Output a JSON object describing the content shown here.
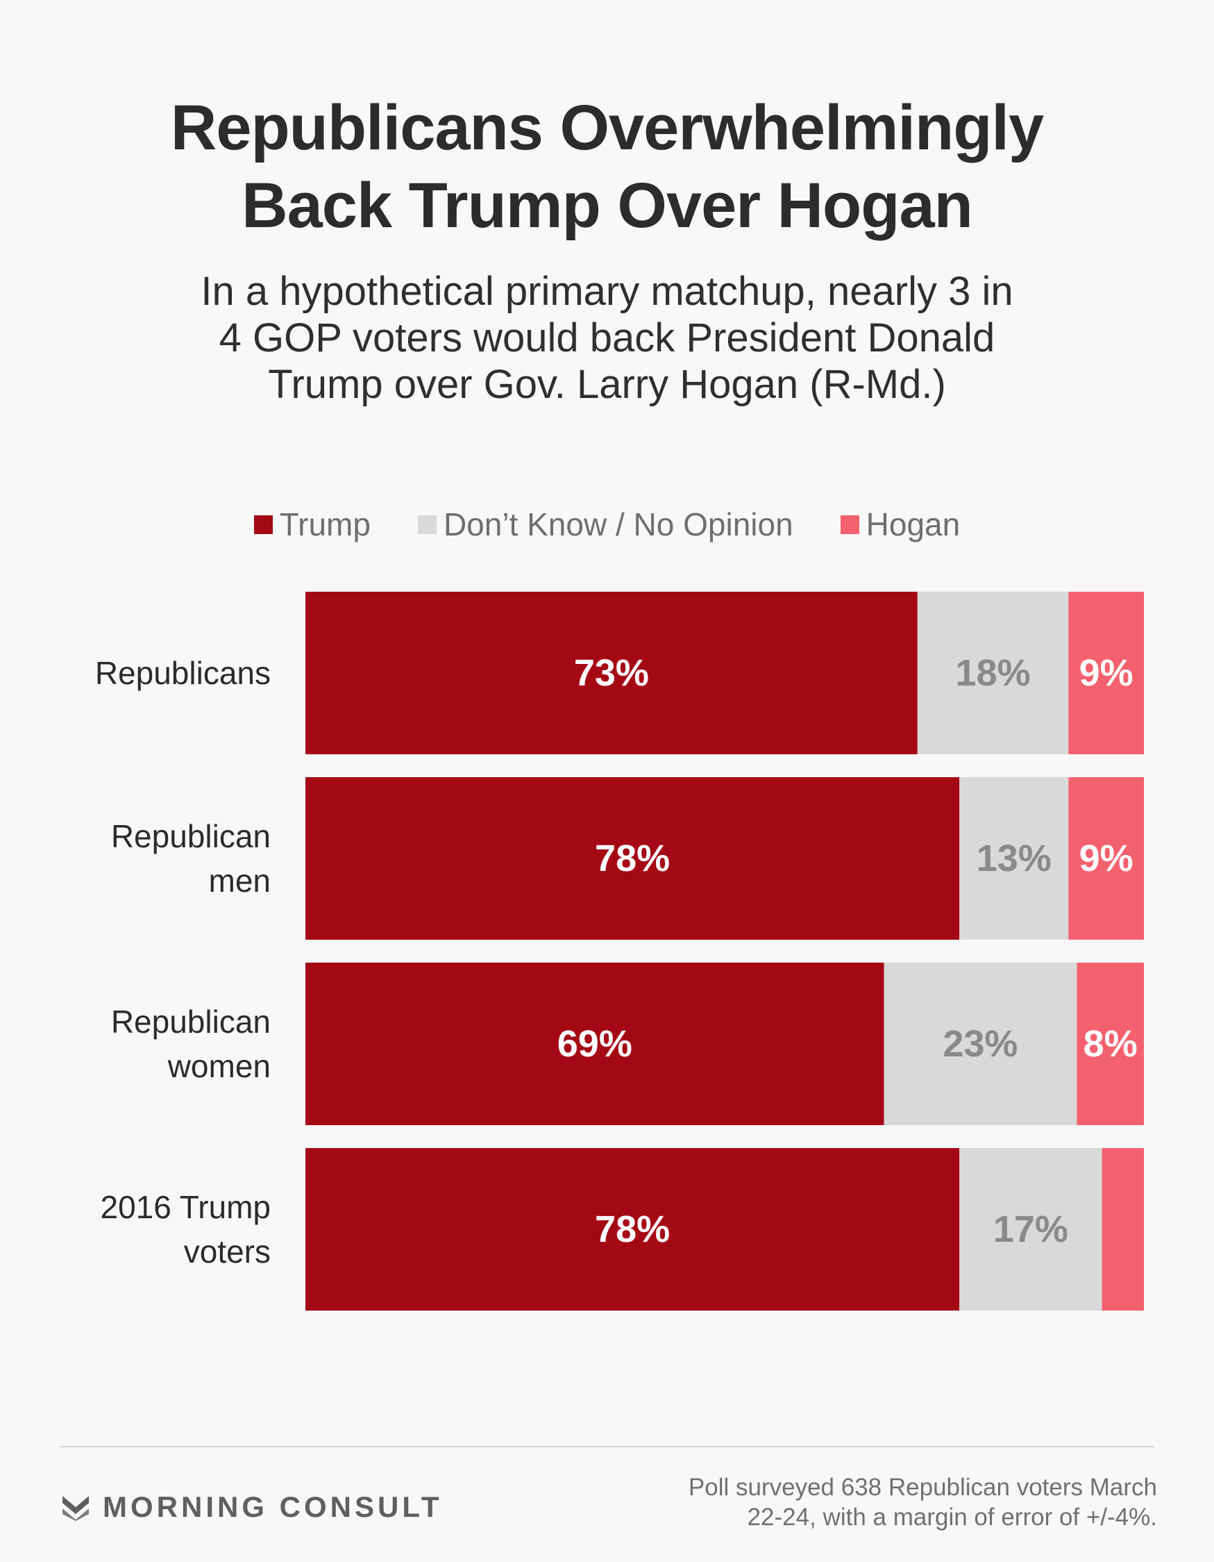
{
  "title_lines": [
    "Republicans Overwhelmingly",
    "Back Trump Over Hogan"
  ],
  "subtitle_lines": [
    "In a hypothetical primary matchup, nearly 3 in",
    "4 GOP voters would back President Donald",
    "Trump over Gov. Larry Hogan (R-Md.)"
  ],
  "legend": [
    {
      "label": "Trump",
      "color": "#a50815"
    },
    {
      "label": "Don’t Know / No Opinion",
      "color": "#d9d9d9"
    },
    {
      "label": "Hogan",
      "color": "#f4616e"
    }
  ],
  "chart_data": {
    "type": "bar",
    "orientation": "horizontal",
    "stacked": true,
    "categories": [
      [
        "Republicans"
      ],
      [
        "Republican",
        "men"
      ],
      [
        "Republican",
        "women"
      ],
      [
        "2016 Trump",
        "voters"
      ]
    ],
    "series": [
      {
        "name": "Trump",
        "color": "#a50815",
        "label_color": "#ffffff",
        "values": [
          73,
          78,
          69,
          78
        ],
        "labels": [
          "73%",
          "78%",
          "69%",
          "78%"
        ]
      },
      {
        "name": "Don’t Know / No Opinion",
        "color": "#d9d9d9",
        "label_color": "#8a8a8a",
        "values": [
          18,
          13,
          23,
          17
        ],
        "labels": [
          "18%",
          "13%",
          "23%",
          "17%"
        ]
      },
      {
        "name": "Hogan",
        "color": "#f4616e",
        "label_color": "#ffffff",
        "values": [
          9,
          9,
          8,
          5
        ],
        "labels": [
          "9%",
          "9%",
          "8%",
          ""
        ]
      }
    ],
    "xlim": [
      0,
      100
    ]
  },
  "footer": {
    "brand": "MORNING CONSULT",
    "source_lines": [
      "Poll surveyed 638 Republican voters March",
      "22-24, with a margin of error of +/-4%."
    ]
  }
}
